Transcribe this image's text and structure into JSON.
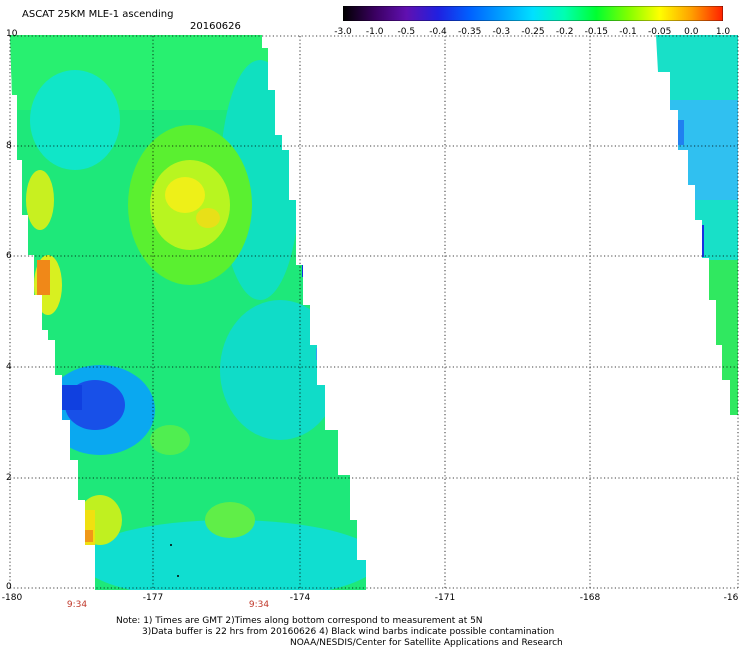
{
  "header": {
    "title": "ASCAT 25KM MLE-1 ascending",
    "date": "20160626"
  },
  "colorbar": {
    "labels": [
      "-3.0",
      "-1.0",
      "-0.5",
      "-0.4",
      "-0.35",
      "-0.3",
      "-0.25",
      "-0.2",
      "-0.15",
      "-0.1",
      "-0.05",
      "0.0",
      "1.0"
    ],
    "colors": [
      "#000000",
      "#3a0060",
      "#6010b0",
      "#2020e0",
      "#0060ff",
      "#00a0ff",
      "#00e0ff",
      "#00ffb0",
      "#00ff30",
      "#80ff00",
      "#ffff00",
      "#ffa000",
      "#ff2000"
    ]
  },
  "axes": {
    "x_labels": [
      "-180",
      "-177",
      "-174",
      "-171",
      "-168",
      "-16"
    ],
    "y_labels": [
      "0",
      "2",
      "4",
      "6",
      "8",
      "10"
    ]
  },
  "times": [
    "9:34",
    "9:34"
  ],
  "notes": {
    "line1": "Note: 1) Times are GMT 2)Times along bottom correspond to measurement at 5N",
    "line2": "3)Data buffer is 22 hrs from 20160626 4) Black wind barbs indicate possible contamination",
    "line3": "NOAA/NESDIS/Center for Satellite Applications and Research"
  }
}
